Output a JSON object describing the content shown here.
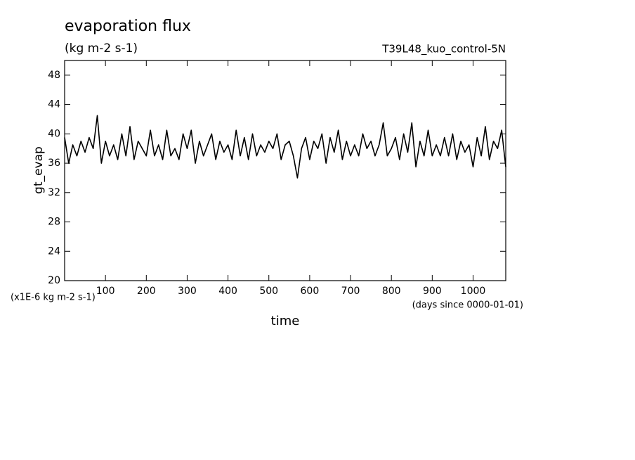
{
  "chart_data": {
    "type": "line",
    "title": "evaporation flux",
    "subtitle": "(kg m-2 s-1)",
    "run_label": "T39L48_kuo_control-5N",
    "y_label": "gt_evap",
    "x_label": "time",
    "y_units": "(x1E-6 kg m-2 s-1)",
    "x_units": "(days since 0000-01-01)",
    "xlim": [
      0,
      1080
    ],
    "ylim": [
      20,
      50
    ],
    "xticks": [
      100,
      200,
      300,
      400,
      500,
      600,
      700,
      800,
      900,
      1000
    ],
    "yticks": [
      20,
      24,
      28,
      32,
      36,
      40,
      44,
      48
    ],
    "series": [
      {
        "name": "gt_evap",
        "color": "#000000",
        "x": [
          0,
          10,
          20,
          30,
          40,
          50,
          60,
          70,
          80,
          90,
          100,
          110,
          120,
          130,
          140,
          150,
          160,
          170,
          180,
          190,
          200,
          210,
          220,
          230,
          240,
          250,
          260,
          270,
          280,
          290,
          300,
          310,
          320,
          330,
          340,
          350,
          360,
          370,
          380,
          390,
          400,
          410,
          420,
          430,
          440,
          450,
          460,
          470,
          480,
          490,
          500,
          510,
          520,
          530,
          540,
          550,
          560,
          570,
          580,
          590,
          600,
          610,
          620,
          630,
          640,
          650,
          660,
          670,
          680,
          690,
          700,
          710,
          720,
          730,
          740,
          750,
          760,
          770,
          780,
          790,
          800,
          810,
          820,
          830,
          840,
          850,
          860,
          870,
          880,
          890,
          900,
          910,
          920,
          930,
          940,
          950,
          960,
          970,
          980,
          990,
          1000,
          1010,
          1020,
          1030,
          1040,
          1050,
          1060,
          1070,
          1080
        ],
        "values": [
          39.5,
          36,
          38.5,
          37,
          39,
          37.5,
          39.5,
          38,
          42.5,
          36,
          39,
          37,
          38.5,
          36.5,
          40,
          37,
          41,
          36.5,
          39,
          38,
          37,
          40.5,
          37,
          38.5,
          36.5,
          40.5,
          37,
          38,
          36.5,
          40,
          38,
          40.5,
          36,
          39,
          37,
          38.5,
          40,
          36.5,
          39,
          37.5,
          38.5,
          36.5,
          40.5,
          37,
          39.5,
          36.5,
          40,
          37,
          38.5,
          37.5,
          39,
          38,
          40,
          36.5,
          38.5,
          39,
          37,
          34,
          38,
          39.5,
          36.5,
          39,
          38,
          40,
          36,
          39.5,
          37.5,
          40.5,
          36.5,
          39,
          37,
          38.5,
          37,
          40,
          38,
          39,
          37,
          38.5,
          41.5,
          37,
          38,
          39.5,
          36.5,
          40,
          37.5,
          41.5,
          35.5,
          39,
          37,
          40.5,
          37,
          38.5,
          37,
          39.5,
          37,
          40,
          36.5,
          39,
          37.5,
          38.5,
          35.5,
          39.5,
          37,
          41,
          36.5,
          39,
          38,
          40.5,
          35.5
        ]
      }
    ]
  }
}
